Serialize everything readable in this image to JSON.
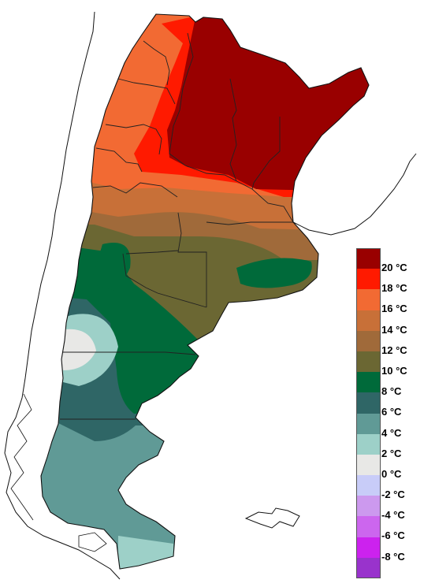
{
  "legend": {
    "items": [
      {
        "label": "20 °C",
        "color": "#990000"
      },
      {
        "label": "18 °C",
        "color": "#ff1a00"
      },
      {
        "label": "16 °C",
        "color": "#f26a33"
      },
      {
        "label": "14 °C",
        "color": "#c87038"
      },
      {
        "label": "12 °C",
        "color": "#a06a3a"
      },
      {
        "label": "10 °C",
        "color": "#6b6733"
      },
      {
        "label": "8 °C",
        "color": "#006a3a"
      },
      {
        "label": "6 °C",
        "color": "#2f6666"
      },
      {
        "label": "4 °C",
        "color": "#609a96"
      },
      {
        "label": "2 °C",
        "color": "#9dd0c8"
      },
      {
        "label": "0 °C",
        "color": "#e8e8e6"
      },
      {
        "label": "-2 °C",
        "color": "#c8ccf8"
      },
      {
        "label": "-4 °C",
        "color": "#cc99ee"
      },
      {
        "label": "-6 °C",
        "color": "#cc66ee"
      },
      {
        "label": "-8 °C",
        "color": "#cc22ee"
      },
      {
        "label": "",
        "color": "#9933cc"
      }
    ]
  }
}
